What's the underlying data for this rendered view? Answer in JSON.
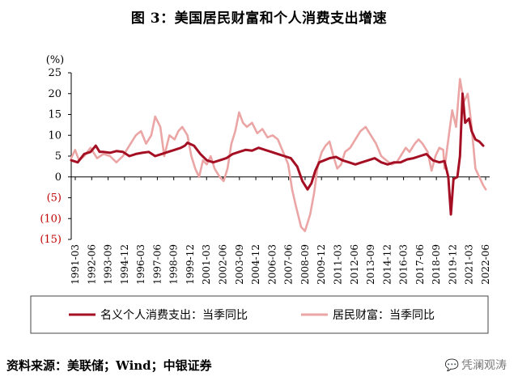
{
  "page": {
    "title": "图 3：美国居民财富和个人消费支出增速",
    "source": "资料来源：美联储；Wind；中银证券",
    "watermark": "凭澜观涛"
  },
  "chart_data": {
    "type": "line",
    "title": "图 3：美国居民财富和个人消费支出增速",
    "ylabel": "(%)",
    "ylim": [
      -15,
      25
    ],
    "yticks": [
      25,
      20,
      15,
      10,
      5,
      0,
      -5,
      -10,
      -15
    ],
    "ytick_labels": [
      "25",
      "20",
      "15",
      "10",
      "5",
      "0",
      "(5)",
      "(10)",
      "(15)"
    ],
    "xlim": [
      1991.0,
      2023.4
    ],
    "xtick_labels": [
      "1991-03",
      "1992-06",
      "1993-09",
      "1994-12",
      "1996-03",
      "1997-06",
      "1998-09",
      "1999-12",
      "2001-03",
      "2002-06",
      "2003-09",
      "2004-12",
      "2006-03",
      "2007-06",
      "2008-09",
      "2009-12",
      "2011-03",
      "2012-06",
      "2013-09",
      "2014-12",
      "2016-03",
      "2017-06",
      "2018-09",
      "2019-12",
      "2021-03",
      "2022-06"
    ],
    "legend": {
      "position": "bottom"
    },
    "grid": false,
    "colors": {
      "consumption": "#a50f23",
      "wealth": "#eba5a5",
      "negative_label": "#c00000"
    },
    "series": [
      {
        "name": "名义个人消费支出：当季同比",
        "color": "#a50f23",
        "points": [
          [
            1991.0,
            4.0
          ],
          [
            1991.5,
            3.5
          ],
          [
            1992.0,
            5.5
          ],
          [
            1992.5,
            6.0
          ],
          [
            1992.9,
            7.5
          ],
          [
            1993.2,
            6.0
          ],
          [
            1993.5,
            6.0
          ],
          [
            1994.0,
            5.8
          ],
          [
            1994.5,
            6.2
          ],
          [
            1995.0,
            6.0
          ],
          [
            1995.5,
            5.0
          ],
          [
            1996.0,
            5.5
          ],
          [
            1996.5,
            5.8
          ],
          [
            1997.0,
            6.0
          ],
          [
            1997.5,
            5.0
          ],
          [
            1998.0,
            5.5
          ],
          [
            1998.5,
            6.0
          ],
          [
            1999.0,
            6.5
          ],
          [
            1999.5,
            7.0
          ],
          [
            1999.8,
            7.5
          ],
          [
            2000.0,
            8.2
          ],
          [
            2000.5,
            7.5
          ],
          [
            2001.0,
            5.5
          ],
          [
            2001.5,
            4.0
          ],
          [
            2002.0,
            3.5
          ],
          [
            2002.5,
            4.0
          ],
          [
            2003.0,
            4.5
          ],
          [
            2003.5,
            5.5
          ],
          [
            2004.0,
            6.0
          ],
          [
            2004.5,
            6.5
          ],
          [
            2005.0,
            6.3
          ],
          [
            2005.5,
            7.0
          ],
          [
            2006.0,
            6.5
          ],
          [
            2006.5,
            6.0
          ],
          [
            2007.0,
            5.5
          ],
          [
            2007.5,
            5.0
          ],
          [
            2008.0,
            4.5
          ],
          [
            2008.5,
            2.5
          ],
          [
            2008.9,
            -1.0
          ],
          [
            2009.3,
            -3.0
          ],
          [
            2009.6,
            -1.5
          ],
          [
            2009.9,
            1.5
          ],
          [
            2010.2,
            3.5
          ],
          [
            2010.6,
            4.0
          ],
          [
            2011.0,
            4.5
          ],
          [
            2011.5,
            4.8
          ],
          [
            2012.0,
            4.0
          ],
          [
            2012.5,
            3.5
          ],
          [
            2013.0,
            3.0
          ],
          [
            2013.5,
            3.5
          ],
          [
            2014.0,
            4.0
          ],
          [
            2014.5,
            4.5
          ],
          [
            2015.0,
            3.5
          ],
          [
            2015.5,
            3.0
          ],
          [
            2016.0,
            3.5
          ],
          [
            2016.5,
            3.5
          ],
          [
            2017.0,
            4.2
          ],
          [
            2017.5,
            4.5
          ],
          [
            2018.0,
            5.0
          ],
          [
            2018.5,
            5.5
          ],
          [
            2019.0,
            4.0
          ],
          [
            2019.5,
            3.5
          ],
          [
            2019.9,
            3.8
          ],
          [
            2020.2,
            0.0
          ],
          [
            2020.4,
            -9.0
          ],
          [
            2020.6,
            -0.5
          ],
          [
            2020.9,
            0.0
          ],
          [
            2021.1,
            5.0
          ],
          [
            2021.3,
            20.0
          ],
          [
            2021.5,
            13.0
          ],
          [
            2021.8,
            14.0
          ],
          [
            2022.0,
            11.0
          ],
          [
            2022.3,
            9.0
          ],
          [
            2022.6,
            8.5
          ],
          [
            2022.9,
            7.5
          ]
        ]
      },
      {
        "name": "居民财富：当季同比",
        "color": "#eba5a5",
        "points": [
          [
            1991.0,
            4.5
          ],
          [
            1991.3,
            6.5
          ],
          [
            1991.6,
            4.0
          ],
          [
            1992.0,
            5.0
          ],
          [
            1992.5,
            7.0
          ],
          [
            1993.0,
            4.5
          ],
          [
            1993.5,
            5.5
          ],
          [
            1994.0,
            5.0
          ],
          [
            1994.5,
            3.5
          ],
          [
            1995.0,
            5.0
          ],
          [
            1995.5,
            7.5
          ],
          [
            1996.0,
            10.0
          ],
          [
            1996.4,
            11.0
          ],
          [
            1996.8,
            8.0
          ],
          [
            1997.2,
            10.0
          ],
          [
            1997.5,
            14.5
          ],
          [
            1997.9,
            12.0
          ],
          [
            1998.2,
            5.0
          ],
          [
            1998.6,
            10.0
          ],
          [
            1999.0,
            9.0
          ],
          [
            1999.3,
            11.0
          ],
          [
            1999.6,
            12.0
          ],
          [
            2000.0,
            10.0
          ],
          [
            2000.3,
            5.0
          ],
          [
            2000.6,
            2.0
          ],
          [
            2000.9,
            0.0
          ],
          [
            2001.2,
            4.0
          ],
          [
            2001.5,
            3.0
          ],
          [
            2001.8,
            5.0
          ],
          [
            2002.1,
            2.0
          ],
          [
            2002.5,
            0.0
          ],
          [
            2002.8,
            -1.0
          ],
          [
            2003.1,
            2.0
          ],
          [
            2003.4,
            8.0
          ],
          [
            2003.7,
            11.0
          ],
          [
            2004.0,
            15.5
          ],
          [
            2004.3,
            13.0
          ],
          [
            2004.6,
            12.0
          ],
          [
            2005.0,
            13.0
          ],
          [
            2005.4,
            10.5
          ],
          [
            2005.8,
            11.5
          ],
          [
            2006.2,
            9.5
          ],
          [
            2006.6,
            10.0
          ],
          [
            2007.0,
            9.0
          ],
          [
            2007.4,
            6.0
          ],
          [
            2007.8,
            3.0
          ],
          [
            2008.1,
            -3.0
          ],
          [
            2008.4,
            -7.0
          ],
          [
            2008.8,
            -12.0
          ],
          [
            2009.1,
            -13.0
          ],
          [
            2009.5,
            -9.0
          ],
          [
            2009.8,
            -4.0
          ],
          [
            2010.1,
            3.0
          ],
          [
            2010.4,
            6.0
          ],
          [
            2010.7,
            7.5
          ],
          [
            2011.0,
            8.5
          ],
          [
            2011.3,
            5.0
          ],
          [
            2011.6,
            2.0
          ],
          [
            2011.9,
            3.0
          ],
          [
            2012.2,
            6.0
          ],
          [
            2012.6,
            7.0
          ],
          [
            2013.0,
            9.0
          ],
          [
            2013.4,
            11.0
          ],
          [
            2013.8,
            12.0
          ],
          [
            2014.2,
            10.0
          ],
          [
            2014.6,
            8.0
          ],
          [
            2015.0,
            5.0
          ],
          [
            2015.4,
            4.0
          ],
          [
            2015.8,
            3.0
          ],
          [
            2016.2,
            3.5
          ],
          [
            2016.5,
            5.0
          ],
          [
            2016.9,
            7.0
          ],
          [
            2017.2,
            6.0
          ],
          [
            2017.6,
            8.0
          ],
          [
            2017.9,
            9.0
          ],
          [
            2018.2,
            8.0
          ],
          [
            2018.6,
            6.0
          ],
          [
            2018.9,
            1.5
          ],
          [
            2019.2,
            5.0
          ],
          [
            2019.5,
            7.0
          ],
          [
            2019.8,
            6.5
          ],
          [
            2019.9,
            2.0
          ],
          [
            2020.2,
            9.0
          ],
          [
            2020.5,
            16.0
          ],
          [
            2020.8,
            12.0
          ],
          [
            2021.1,
            23.5
          ],
          [
            2021.4,
            18.0
          ],
          [
            2021.7,
            20.0
          ],
          [
            2022.0,
            12.0
          ],
          [
            2022.3,
            2.0
          ],
          [
            2022.6,
            0.0
          ],
          [
            2022.9,
            -2.0
          ],
          [
            2023.1,
            -3.0
          ]
        ]
      }
    ]
  }
}
